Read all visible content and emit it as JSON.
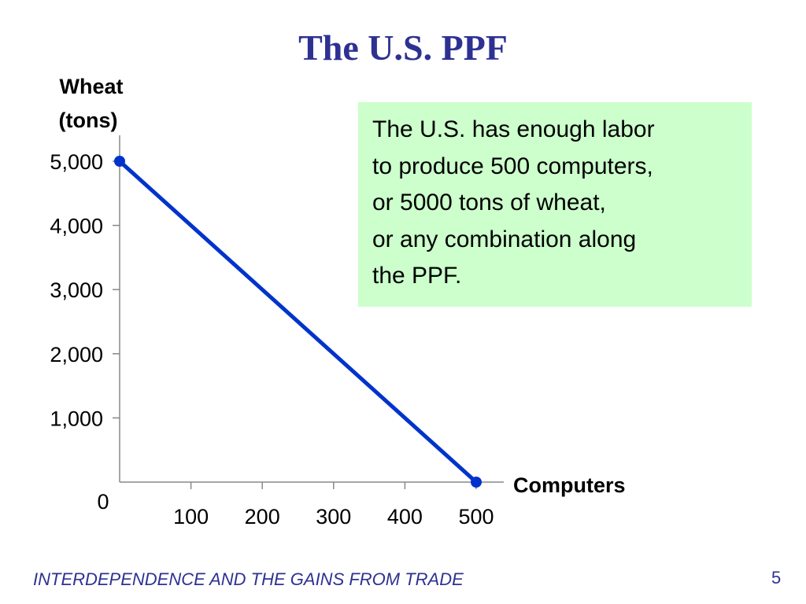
{
  "slide": {
    "title": "The U.S. PPF",
    "footer": "INTERDEPENDENCE AND THE GAINS FROM TRADE",
    "page_number": "5"
  },
  "note": {
    "lines": [
      "The U.S. has enough labor",
      "to produce 500 computers,",
      "or 5000 tons of wheat,",
      "or any combination along",
      "the PPF."
    ],
    "background": "#ccffcc"
  },
  "colors": {
    "title": "#2e3192",
    "line": "#0033cc",
    "axis": "#888888"
  },
  "chart_data": {
    "type": "line",
    "title": "",
    "ylabel_lines": [
      "Wheat",
      "(tons)"
    ],
    "xlabel": "Computers",
    "xlim": [
      0,
      500
    ],
    "ylim": [
      0,
      5000
    ],
    "origin_label": "0",
    "x_ticks": [
      {
        "value": 100,
        "label": "100"
      },
      {
        "value": 200,
        "label": "200"
      },
      {
        "value": 300,
        "label": "300"
      },
      {
        "value": 400,
        "label": "400"
      },
      {
        "value": 500,
        "label": "500"
      }
    ],
    "y_ticks": [
      {
        "value": 1000,
        "label": "1,000"
      },
      {
        "value": 2000,
        "label": "2,000"
      },
      {
        "value": 3000,
        "label": "3,000"
      },
      {
        "value": 4000,
        "label": "4,000"
      },
      {
        "value": 5000,
        "label": "5,000"
      }
    ],
    "series": [
      {
        "points": [
          {
            "x": 0,
            "y": 5000
          },
          {
            "x": 500,
            "y": 0
          }
        ]
      }
    ],
    "grid": false,
    "legend": "none"
  }
}
